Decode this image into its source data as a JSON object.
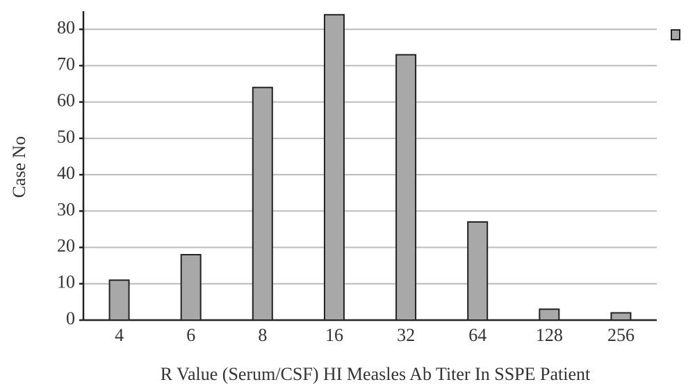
{
  "chart_data": {
    "type": "bar",
    "x_label": "R Value (Serum/CSF) HI Measles Ab Titer In SSPE Patient",
    "y_label": "Case No",
    "categories": [
      "4",
      "6",
      "8",
      "16",
      "32",
      "64",
      "128",
      "256"
    ],
    "values": [
      11,
      18,
      64,
      84,
      73,
      27,
      3,
      2
    ],
    "color": "#a8a8a8",
    "ylim": [
      0,
      85
    ],
    "yticks": [
      0,
      10,
      20,
      30,
      40,
      50,
      60,
      70,
      80
    ],
    "grid": true
  }
}
